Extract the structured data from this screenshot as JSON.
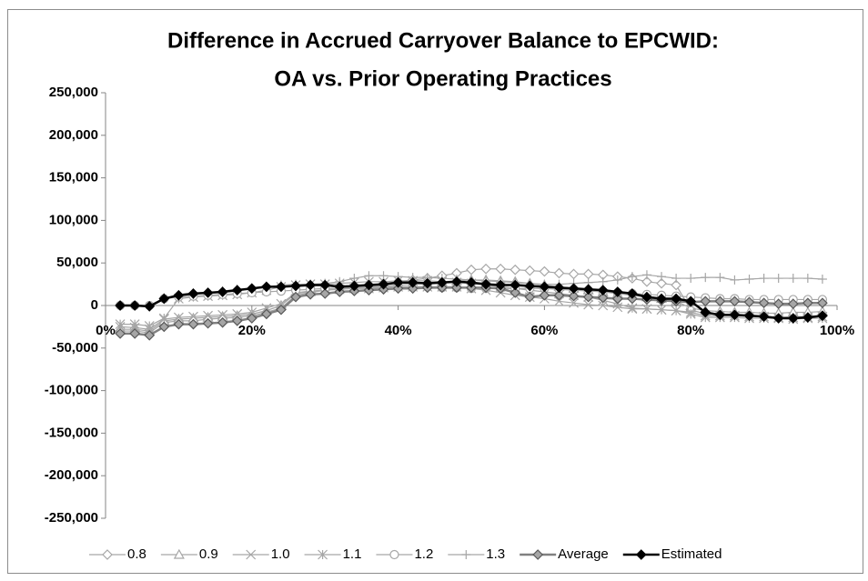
{
  "chart_data": {
    "type": "line",
    "title": [
      "Difference in Accrued Carryover Balance to EPCWID:",
      "OA vs. Prior Operating Practices"
    ],
    "x": [
      2,
      4,
      6,
      8,
      10,
      12,
      14,
      16,
      18,
      20,
      22,
      24,
      26,
      28,
      30,
      32,
      34,
      36,
      38,
      40,
      42,
      44,
      46,
      48,
      50,
      52,
      54,
      56,
      58,
      60,
      62,
      64,
      66,
      68,
      70,
      72,
      74,
      76,
      78,
      80,
      82,
      84,
      86,
      88,
      90,
      92,
      94,
      96,
      98
    ],
    "xlim": [
      0,
      100
    ],
    "xticks": [
      {
        "value": 0,
        "label": "0%"
      },
      {
        "value": 20,
        "label": "20%"
      },
      {
        "value": 40,
        "label": "40%"
      },
      {
        "value": 60,
        "label": "60%"
      },
      {
        "value": 80,
        "label": "80%"
      },
      {
        "value": 100,
        "label": "100%"
      }
    ],
    "ylim": [
      -250000,
      250000
    ],
    "yticks": [
      {
        "value": -250000,
        "label": "-250,000"
      },
      {
        "value": -200000,
        "label": "-200,000"
      },
      {
        "value": -150000,
        "label": "-150,000"
      },
      {
        "value": -100000,
        "label": "-100,000"
      },
      {
        "value": -50000,
        "label": "-50,000"
      },
      0,
      {
        "value": 50000,
        "label": "50,000"
      },
      {
        "value": 100000,
        "label": "100,000"
      },
      {
        "value": 150000,
        "label": "150,000"
      },
      {
        "value": 200000,
        "label": "200,000"
      },
      {
        "value": 250000,
        "label": "250,000"
      }
    ],
    "grid": false,
    "legend": "bottom",
    "series": [
      {
        "name": "0.8",
        "color": "#a6a6a6",
        "marker": "diamond",
        "values": [
          -30000,
          -30000,
          -32000,
          -20000,
          -18000,
          -18000,
          -16000,
          -15000,
          -14000,
          -12000,
          -8000,
          -3000,
          12000,
          15000,
          18000,
          20000,
          22000,
          24000,
          26000,
          28000,
          30000,
          32000,
          35000,
          38000,
          42000,
          43000,
          43000,
          42000,
          41000,
          40000,
          38000,
          37000,
          37000,
          36000,
          34000,
          32000,
          28000,
          26000,
          24000,
          -5000,
          -10000,
          -10000,
          -11000,
          -12000,
          -13000,
          -14000,
          -13000,
          -13000,
          -12000
        ]
      },
      {
        "name": "0.9",
        "color": "#a6a6a6",
        "marker": "triangle",
        "values": [
          -28000,
          -28000,
          -30000,
          -18000,
          -16000,
          -15000,
          -14000,
          -13000,
          -12000,
          -10000,
          -6000,
          0,
          14000,
          16000,
          18000,
          20000,
          21000,
          22000,
          23000,
          24000,
          25000,
          26000,
          28000,
          29000,
          30000,
          30000,
          29000,
          28000,
          26000,
          24000,
          22000,
          20000,
          18000,
          16000,
          14000,
          12000,
          10000,
          8000,
          5000,
          -3000,
          -6000,
          -7000,
          -8000,
          -8000,
          -9000,
          -9000,
          -8000,
          -8000,
          -7000
        ]
      },
      {
        "name": "1.0",
        "color": "#a6a6a6",
        "marker": "x",
        "values": [
          -25000,
          -26000,
          -28000,
          -16000,
          -14000,
          -13000,
          -12000,
          -11000,
          -10000,
          -8000,
          -3000,
          2000,
          15000,
          17000,
          18000,
          19000,
          20000,
          20000,
          21000,
          22000,
          22000,
          22000,
          22000,
          22000,
          20000,
          18000,
          15000,
          12000,
          10000,
          8000,
          5000,
          3000,
          1000,
          0,
          -2000,
          -4000,
          -4000,
          -5000,
          -6000,
          -8000,
          -12000,
          -12000,
          -12000,
          -13000,
          -13000,
          -14000,
          -14000,
          -14000,
          -13000
        ]
      },
      {
        "name": "1.1",
        "color": "#a6a6a6",
        "marker": "star",
        "values": [
          -22000,
          -22000,
          -24000,
          -15000,
          8000,
          10000,
          11000,
          12000,
          13000,
          15000,
          18000,
          22000,
          24000,
          25000,
          25000,
          26000,
          27000,
          28000,
          28000,
          29000,
          29000,
          29000,
          28000,
          27000,
          26000,
          24000,
          22000,
          20000,
          18000,
          16000,
          14000,
          12000,
          10000,
          6000,
          2000,
          -3000,
          -4000,
          -5000,
          -6000,
          -10000,
          -14000,
          -14000,
          -14000,
          -15000,
          -15000,
          -15000,
          -16000,
          -15000,
          -15000
        ]
      },
      {
        "name": "1.2",
        "color": "#a6a6a6",
        "marker": "circle",
        "values": [
          0,
          0,
          0,
          8000,
          10000,
          11000,
          12000,
          13000,
          14000,
          15000,
          16000,
          17000,
          18000,
          19000,
          20000,
          20000,
          21000,
          21000,
          22000,
          22000,
          22000,
          22000,
          21000,
          21000,
          20000,
          20000,
          20000,
          20000,
          20000,
          20000,
          19000,
          18000,
          17000,
          16000,
          15000,
          14000,
          13000,
          12000,
          11000,
          10000,
          9000,
          8000,
          8000,
          7000,
          7000,
          7000,
          7000,
          7000,
          7000
        ]
      },
      {
        "name": "1.3",
        "color": "#a6a6a6",
        "marker": "plus",
        "values": [
          0,
          0,
          0,
          9000,
          11000,
          13000,
          15000,
          17000,
          19000,
          20000,
          22000,
          24000,
          25000,
          25000,
          26000,
          28000,
          32000,
          35000,
          35000,
          34000,
          33000,
          33000,
          32000,
          31000,
          30000,
          29000,
          28000,
          27000,
          26000,
          25000,
          25000,
          26000,
          27000,
          28000,
          30000,
          34000,
          36000,
          34000,
          32000,
          32000,
          33000,
          33000,
          30000,
          31000,
          32000,
          32000,
          32000,
          32000,
          31000
        ]
      },
      {
        "name": "Average",
        "color": "#808080",
        "marker": "diamond",
        "values": [
          -33000,
          -33000,
          -35000,
          -25000,
          -22000,
          -22000,
          -21000,
          -20000,
          -18000,
          -15000,
          -10000,
          -5000,
          10000,
          13000,
          14000,
          16000,
          17000,
          18000,
          19000,
          20000,
          20000,
          21000,
          21000,
          21000,
          21000,
          21000,
          20000,
          15000,
          10000,
          12000,
          12000,
          11000,
          10000,
          9000,
          8000,
          8000,
          7000,
          6000,
          5000,
          4000,
          5000,
          5000,
          5000,
          4000,
          3000,
          2000,
          2000,
          3000,
          3000
        ]
      },
      {
        "name": "Estimated",
        "color": "#000000",
        "marker": "diamond",
        "values": [
          0,
          0,
          -1000,
          8000,
          12000,
          14000,
          15000,
          16000,
          18000,
          20000,
          22000,
          22000,
          23000,
          24000,
          24000,
          22000,
          23000,
          24000,
          25000,
          27000,
          27000,
          26000,
          27000,
          28000,
          27000,
          25000,
          24000,
          24000,
          23000,
          22000,
          21000,
          20000,
          19000,
          18000,
          16000,
          14000,
          10000,
          8000,
          8000,
          5000,
          -8000,
          -11000,
          -11000,
          -12000,
          -13000,
          -15000,
          -15000,
          -14000,
          -12000
        ]
      }
    ]
  }
}
